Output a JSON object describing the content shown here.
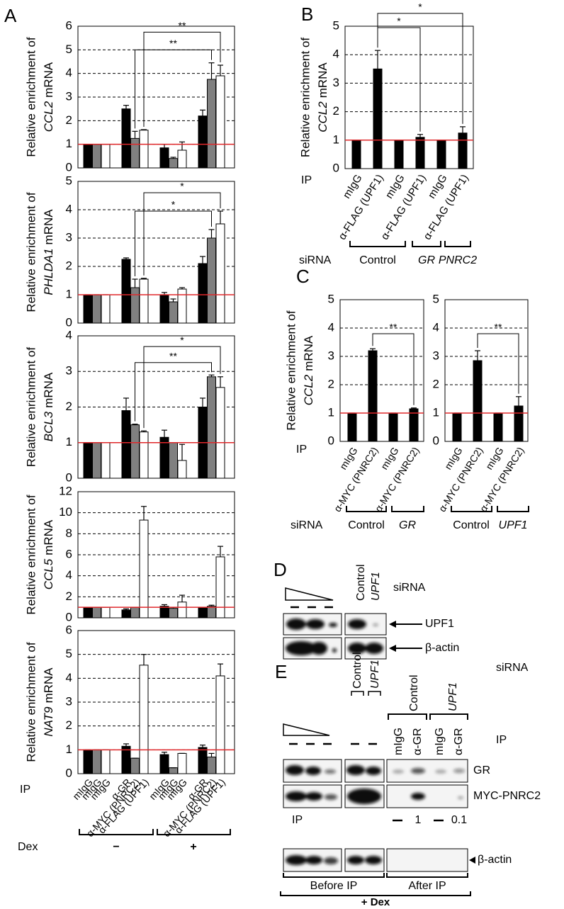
{
  "panel_labels": [
    "A",
    "B",
    "C",
    "D",
    "E"
  ],
  "chart_data": [
    {
      "type": "bar",
      "ylabel": {
        "line1": "Relative enrichment of",
        "gene": "CCL2",
        "suffix": "mRNA"
      },
      "values": [
        1,
        1,
        1,
        2.5,
        1.25,
        1.6,
        0.85,
        0.4,
        0.75,
        2.2,
        3.75,
        3.9
      ],
      "errors": [
        0,
        0,
        0,
        0.15,
        0.3,
        0.02,
        0.15,
        0.05,
        0.35,
        0.25,
        0.7,
        0.45
      ],
      "colors": [
        "#000000",
        "#808080",
        "#ffffff"
      ],
      "ylim": [
        0,
        6
      ],
      "yticks": [
        0,
        1,
        2,
        3,
        4,
        5,
        6
      ],
      "grid": true,
      "reference_line": {
        "value": 1,
        "color": "#e0282b"
      },
      "annotations": [
        "**",
        "**"
      ]
    },
    {
      "type": "bar",
      "ylabel": {
        "line1": "Relative enrichment of",
        "gene": "PHLDA1",
        "suffix": "mRNA"
      },
      "values": [
        1,
        1,
        1,
        2.25,
        1.25,
        1.55,
        1.0,
        0.75,
        1.2,
        2.1,
        3.0,
        3.5
      ],
      "errors": [
        0,
        0,
        0,
        0.05,
        0.3,
        0.03,
        0.08,
        0.1,
        0.05,
        0.25,
        0.3,
        0.45
      ],
      "colors": [
        "#000000",
        "#808080",
        "#ffffff"
      ],
      "ylim": [
        0,
        5
      ],
      "yticks": [
        0,
        1,
        2,
        3,
        4,
        5
      ],
      "grid": true,
      "reference_line": {
        "value": 1,
        "color": "#e0282b"
      },
      "annotations": [
        "*",
        "*"
      ]
    },
    {
      "type": "bar",
      "ylabel": {
        "line1": "Relative enrichment of",
        "gene": "BCL3",
        "suffix": "mRNA"
      },
      "values": [
        1,
        1,
        1,
        1.9,
        1.5,
        1.3,
        1.15,
        1.0,
        0.5,
        2.0,
        2.85,
        2.55
      ],
      "errors": [
        0,
        0,
        0,
        0.35,
        0.02,
        0.03,
        0.2,
        0,
        0.45,
        0.25,
        0.05,
        0.3
      ],
      "colors": [
        "#000000",
        "#808080",
        "#ffffff"
      ],
      "ylim": [
        0,
        4
      ],
      "yticks": [
        0,
        1,
        2,
        3,
        4
      ],
      "grid": true,
      "reference_line": {
        "value": 1,
        "color": "#e0282b"
      },
      "annotations": [
        "*",
        "**"
      ]
    },
    {
      "type": "bar",
      "ylabel": {
        "line1": "Relative enrichment of",
        "gene": "CCL5",
        "suffix": "mRNA"
      },
      "values": [
        1,
        1,
        1,
        0.75,
        1.0,
        9.3,
        1.1,
        0.9,
        1.5,
        1.0,
        1.1,
        5.8
      ],
      "errors": [
        0,
        0,
        0,
        0.1,
        0,
        1.3,
        0.15,
        0.1,
        0.65,
        0,
        0.1,
        1.0
      ],
      "colors": [
        "#000000",
        "#808080",
        "#ffffff"
      ],
      "ylim": [
        0,
        12
      ],
      "yticks": [
        0,
        2,
        4,
        6,
        8,
        10,
        12
      ],
      "grid": true,
      "reference_line": {
        "value": 1,
        "color": "#e0282b"
      },
      "annotations": []
    },
    {
      "type": "bar",
      "ylabel": {
        "line1": "Relative enrichment of",
        "gene": "NAT9",
        "suffix": "mRNA"
      },
      "categories": [
        "mIgG",
        "mIgG",
        "mIgG",
        "α-GR",
        "α-MYC (PNRC2)",
        "α-FLAG (UPF1)",
        "mIgG",
        "mIgG",
        "mIgG",
        "α-GR",
        "α-MYC (PNRC2)",
        "α-FLAG (UPF1)"
      ],
      "values": [
        1,
        1,
        1,
        1.15,
        0.65,
        4.55,
        0.8,
        0.25,
        0.85,
        1.1,
        0.7,
        4.1
      ],
      "errors": [
        0,
        0,
        0,
        0.1,
        0,
        0.45,
        0.1,
        0,
        0,
        0.1,
        0.15,
        0.5
      ],
      "colors": [
        "#000000",
        "#808080",
        "#ffffff"
      ],
      "ylim": [
        0,
        6
      ],
      "yticks": [
        0,
        1,
        2,
        3,
        4,
        5,
        6
      ],
      "grid": true,
      "reference_line": {
        "value": 1,
        "color": "#e0282b"
      },
      "annotations": []
    },
    {
      "type": "bar",
      "ylabel": {
        "line1": "Relative enrichment of",
        "gene": "CCL2",
        "suffix": "mRNA"
      },
      "categories": [
        "mIgG",
        "α-FLAG (UPF1)",
        "mIgG",
        "α-FLAG (UPF1)",
        "mIgG",
        "α-FLAG (UPF1)"
      ],
      "values": [
        1,
        3.5,
        1,
        1.1,
        1,
        1.25
      ],
      "errors": [
        0,
        0.65,
        0,
        0.1,
        0,
        0.22
      ],
      "colors": [
        "#000000"
      ],
      "ylim": [
        0,
        5
      ],
      "yticks": [
        0,
        1,
        2,
        3,
        4,
        5
      ],
      "grid": true,
      "reference_line": {
        "value": 1,
        "color": "#e0282b"
      },
      "annotations": [
        "*",
        "*"
      ]
    },
    {
      "type": "bar",
      "ylabel": {
        "line1": "Relative enrichment of",
        "gene": "CCL2",
        "suffix": "mRNA"
      },
      "categories": [
        "mIgG",
        "α-MYC (PNRC2)",
        "mIgG",
        "α-MYC (PNRC2)"
      ],
      "values": [
        1,
        3.2,
        1,
        1.15
      ],
      "errors": [
        0,
        0.07,
        0,
        0.03
      ],
      "colors": [
        "#000000"
      ],
      "ylim": [
        0,
        5
      ],
      "yticks": [
        0,
        1,
        2,
        3,
        4,
        5
      ],
      "grid": true,
      "reference_line": {
        "value": 1,
        "color": "#e0282b"
      },
      "annotations": [
        "**"
      ]
    },
    {
      "type": "bar",
      "categories": [
        "mIgG",
        "α-MYC (PNRC2)",
        "mIgG",
        "α-MYC (PNRC2)"
      ],
      "values": [
        1,
        2.85,
        1,
        1.25
      ],
      "errors": [
        0,
        0.35,
        0,
        0.33
      ],
      "colors": [
        "#000000"
      ],
      "ylim": [
        0,
        5
      ],
      "yticks": [
        0,
        1,
        2,
        3,
        4,
        5
      ],
      "grid": true,
      "reference_line": {
        "value": 1,
        "color": "#e0282b"
      },
      "annotations": [
        "**"
      ]
    }
  ],
  "panel_a": {
    "ip_label": "IP",
    "dex_label": "Dex",
    "dex_groups": [
      "−",
      "+"
    ]
  },
  "panel_b": {
    "ip_label": "IP",
    "sirna_label": "siRNA",
    "sirna_groups": [
      "Control",
      "GR",
      "PNRC2"
    ]
  },
  "panel_c": {
    "ip_label": "IP",
    "sirna_label": "siRNA",
    "left_groups": [
      "Control",
      "GR"
    ],
    "right_groups": [
      "Control",
      "UPF1"
    ]
  },
  "panel_d": {
    "sirna_lanes": [
      "Control",
      "UPF1"
    ],
    "sirna_label": "siRNA",
    "bands": [
      "UPF1",
      "β-actin"
    ]
  },
  "panel_e": {
    "sirna_lanes": [
      "Control",
      "UPF1"
    ],
    "sirna_groups": [
      "Control",
      "UPF1"
    ],
    "sirna_label": "siRNA",
    "ip_lanes": [
      "mIgG",
      "α-GR",
      "mIgG",
      "α-GR"
    ],
    "ip_label": "IP",
    "bands": [
      "GR",
      "MYC-PNRC2",
      "β-actin"
    ],
    "input_label": "IP",
    "input_fractions": [
      1,
      0.1
    ],
    "sections": [
      "Before IP",
      "After IP"
    ],
    "treatment": "+ Dex"
  }
}
